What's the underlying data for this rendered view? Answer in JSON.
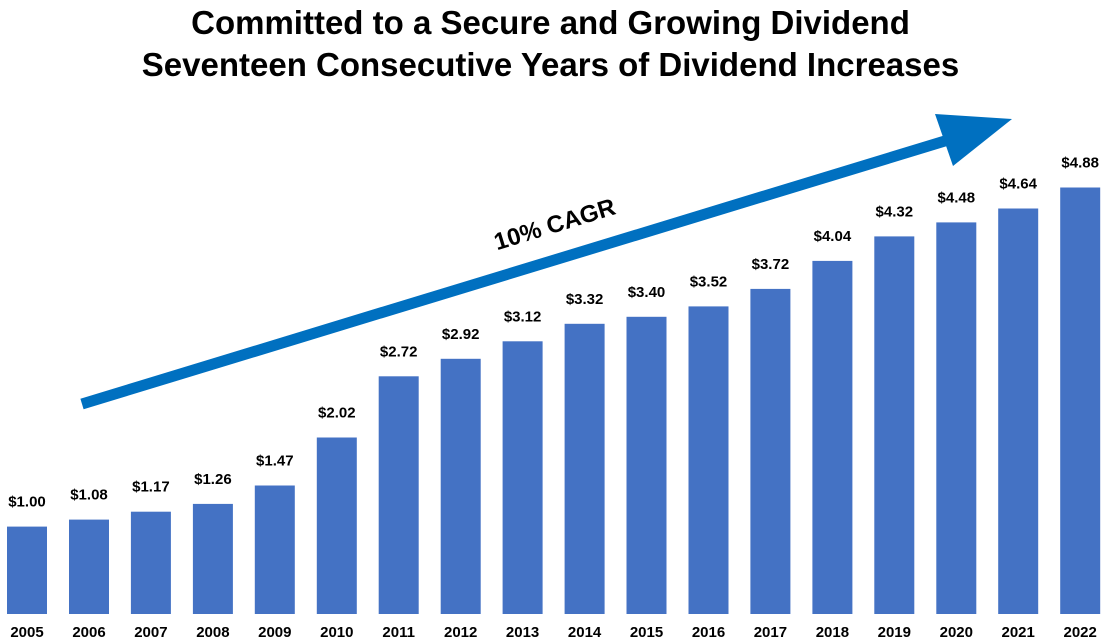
{
  "title": "Committed to a Secure and Growing Dividend",
  "subtitle": "Seventeen Consecutive Years of Dividend Increases",
  "annotation": "10% CAGR",
  "colors": {
    "bar": "#4472C4",
    "arrow": "#0070C0",
    "text": "#000000"
  },
  "chart_data": {
    "type": "bar",
    "title": "Committed to a Secure and Growing Dividend",
    "subtitle": "Seventeen Consecutive Years of Dividend Increases",
    "categories": [
      "2005",
      "2006",
      "2007",
      "2008",
      "2009",
      "2010",
      "2011",
      "2012",
      "2013",
      "2014",
      "2015",
      "2016",
      "2017",
      "2018",
      "2019",
      "2020",
      "2021",
      "2022"
    ],
    "values": [
      1.0,
      1.08,
      1.17,
      1.26,
      1.47,
      2.02,
      2.72,
      2.92,
      3.12,
      3.32,
      3.4,
      3.52,
      3.72,
      4.04,
      4.32,
      4.48,
      4.64,
      4.88
    ],
    "data_labels": [
      "$1.00",
      "$1.08",
      "$1.17",
      "$1.26",
      "$1.47",
      "$2.02",
      "$2.72",
      "$2.92",
      "$3.12",
      "$3.32",
      "$3.40",
      "$3.52",
      "$3.72",
      "$4.04",
      "$4.32",
      "$4.48",
      "$4.64",
      "$4.88"
    ],
    "annotations": [
      "10% CAGR"
    ],
    "xlabel": "",
    "ylabel": "",
    "grid": false,
    "legend": "none"
  }
}
